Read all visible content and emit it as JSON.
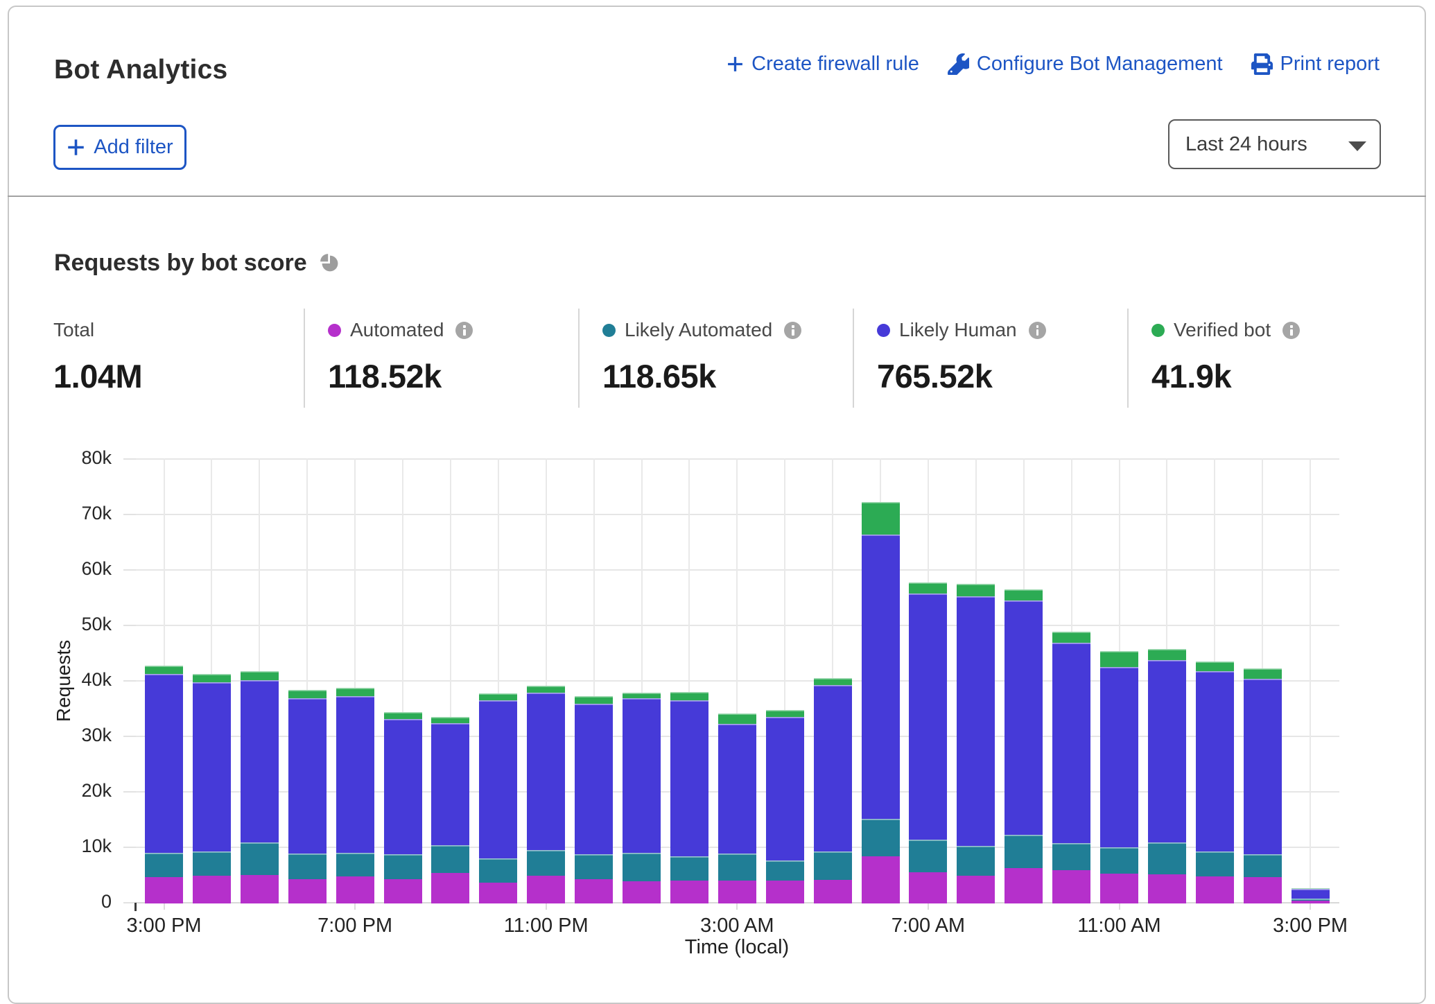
{
  "header": {
    "title": "Bot Analytics",
    "actions": [
      {
        "label": "Create firewall rule",
        "icon": "plus-icon"
      },
      {
        "label": "Configure Bot Management",
        "icon": "wrench-icon"
      },
      {
        "label": "Print report",
        "icon": "printer-icon"
      }
    ],
    "add_filter_label": "Add filter",
    "time_range": {
      "selected": "Last 24 hours"
    }
  },
  "section": {
    "title": "Requests by bot score",
    "title_icon": "pie-chart-icon",
    "stats": [
      {
        "label": "Total",
        "value": "1.04M",
        "dot_color": null,
        "has_info": false
      },
      {
        "label": "Automated",
        "value": "118.52k",
        "dot_color": "#b530cb",
        "has_info": true
      },
      {
        "label": "Likely Automated",
        "value": "118.65k",
        "dot_color": "#207e96",
        "has_info": true
      },
      {
        "label": "Likely Human",
        "value": "765.52k",
        "dot_color": "#463ad8",
        "has_info": true
      },
      {
        "label": "Verified bot",
        "value": "41.9k",
        "dot_color": "#2cab54",
        "has_info": true
      }
    ]
  },
  "chart_data": {
    "type": "bar",
    "stacked": true,
    "title": "Requests by bot score",
    "xlabel": "Time (local)",
    "ylabel": "Requests",
    "ylim": [
      0,
      80000
    ],
    "grid": true,
    "ytick_labels": [
      "80k",
      "70k",
      "60k",
      "50k",
      "40k",
      "30k",
      "20k",
      "10k",
      "0"
    ],
    "x_hours": 25,
    "x_tick_labels": [
      "3:00 PM",
      "7:00 PM",
      "11:00 PM",
      "3:00 AM",
      "7:00 AM",
      "11:00 AM",
      "3:00 PM"
    ],
    "x_tick_indices": [
      0,
      4,
      8,
      12,
      16,
      20,
      24
    ],
    "series": [
      {
        "name": "Automated",
        "color": "#b530cb",
        "values": [
          4760,
          4930,
          5100,
          4400,
          4800,
          4400,
          5450,
          3700,
          4930,
          4400,
          3960,
          4060,
          4130,
          4130,
          4230,
          8440,
          5580,
          5000,
          6300,
          5930,
          5400,
          5280,
          4830,
          4700,
          500
        ]
      },
      {
        "name": "Likely Automated",
        "color": "#207e96",
        "values": [
          4340,
          4360,
          5900,
          4600,
          4300,
          4500,
          5050,
          4400,
          4700,
          4400,
          5080,
          4400,
          4800,
          3600,
          5070,
          6760,
          5920,
          5400,
          6000,
          4970,
          4750,
          5720,
          4470,
          4200,
          400
        ]
      },
      {
        "name": "Likely Human",
        "color": "#463ad8",
        "values": [
          32200,
          30500,
          29100,
          27900,
          28100,
          24200,
          21900,
          28400,
          28200,
          27100,
          27800,
          28100,
          23300,
          25800,
          29900,
          51100,
          44200,
          44800,
          42100,
          35900,
          32350,
          32800,
          32500,
          31500,
          1750
        ]
      },
      {
        "name": "Verified bot",
        "color": "#2cab54",
        "values": [
          1400,
          1500,
          1700,
          1500,
          1500,
          1300,
          1100,
          1200,
          1300,
          1300,
          1100,
          1400,
          1900,
          1300,
          1300,
          5900,
          2000,
          2200,
          2100,
          2100,
          2900,
          1900,
          1700,
          1900,
          100
        ]
      }
    ]
  }
}
